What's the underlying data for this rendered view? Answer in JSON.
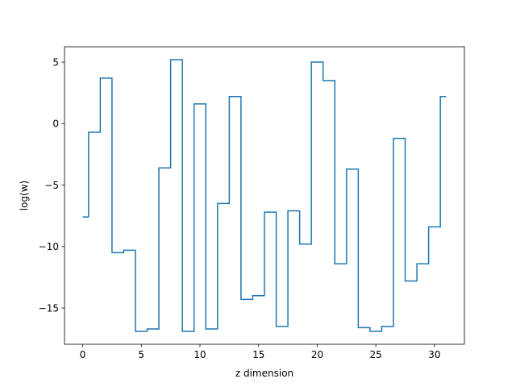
{
  "chart_data": {
    "type": "line",
    "drawstyle": "steps-mid",
    "title": "",
    "xlabel": "z dimension",
    "ylabel": "log(w)",
    "xlim": [
      -1.55,
      32.55
    ],
    "ylim": [
      -17.95,
      6.25
    ],
    "xticks": [
      0,
      5,
      10,
      15,
      20,
      25,
      30
    ],
    "yticks": [
      -15,
      -10,
      -5,
      0,
      5
    ],
    "grid": false,
    "legend": "none",
    "series_color": "#1f77b4",
    "x": [
      0,
      1,
      2,
      3,
      4,
      5,
      6,
      7,
      8,
      9,
      10,
      11,
      12,
      13,
      14,
      15,
      16,
      17,
      18,
      19,
      20,
      21,
      22,
      23,
      24,
      25,
      26,
      27,
      28,
      29,
      30,
      31
    ],
    "y": [
      -7.6,
      -0.7,
      3.7,
      -10.5,
      -10.3,
      -16.9,
      -16.7,
      -3.6,
      5.2,
      -16.9,
      1.6,
      -16.7,
      -6.5,
      2.2,
      -14.3,
      -14.0,
      -7.2,
      -16.5,
      -7.1,
      -9.8,
      5.0,
      3.5,
      -11.4,
      -3.7,
      -16.6,
      -16.9,
      -16.5,
      -1.2,
      -12.8,
      -11.4,
      -8.4,
      2.2
    ]
  }
}
